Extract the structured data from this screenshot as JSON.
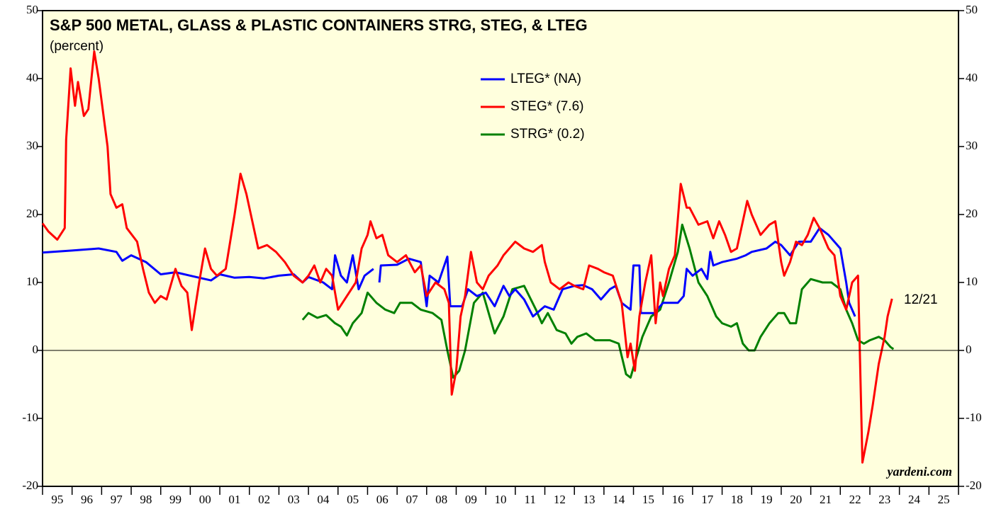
{
  "chart_data": {
    "type": "line",
    "title": "S&P 500 METAL, GLASS & PLASTIC CONTAINERS STRG, STEG, & LTEG",
    "subtitle": "(percent)",
    "annotation": "12/21",
    "source": "yardeni.com",
    "xlim": [
      1995,
      2026
    ],
    "xticks": [
      1995,
      1996,
      1997,
      1998,
      1999,
      2000,
      2001,
      2002,
      2003,
      2004,
      2005,
      2006,
      2007,
      2008,
      2009,
      2010,
      2011,
      2012,
      2013,
      2014,
      2015,
      2016,
      2017,
      2018,
      2019,
      2020,
      2021,
      2022,
      2023,
      2024,
      2025,
      2026
    ],
    "xlabels": [
      {
        "value": 1995.5,
        "label": "95"
      },
      {
        "value": 1996.5,
        "label": "96"
      },
      {
        "value": 1997.5,
        "label": "97"
      },
      {
        "value": 1998.5,
        "label": "98"
      },
      {
        "value": 1999.5,
        "label": "99"
      },
      {
        "value": 2000.5,
        "label": "00"
      },
      {
        "value": 2001.5,
        "label": "01"
      },
      {
        "value": 2002.5,
        "label": "02"
      },
      {
        "value": 2003.5,
        "label": "03"
      },
      {
        "value": 2004.5,
        "label": "04"
      },
      {
        "value": 2005.5,
        "label": "05"
      },
      {
        "value": 2006.5,
        "label": "06"
      },
      {
        "value": 2007.5,
        "label": "07"
      },
      {
        "value": 2008.5,
        "label": "08"
      },
      {
        "value": 2009.5,
        "label": "09"
      },
      {
        "value": 2010.5,
        "label": "10"
      },
      {
        "value": 2011.5,
        "label": "11"
      },
      {
        "value": 2012.5,
        "label": "12"
      },
      {
        "value": 2013.5,
        "label": "13"
      },
      {
        "value": 2014.5,
        "label": "14"
      },
      {
        "value": 2015.5,
        "label": "15"
      },
      {
        "value": 2016.5,
        "label": "16"
      },
      {
        "value": 2017.5,
        "label": "17"
      },
      {
        "value": 2018.5,
        "label": "18"
      },
      {
        "value": 2019.5,
        "label": "19"
      },
      {
        "value": 2020.5,
        "label": "20"
      },
      {
        "value": 2021.5,
        "label": "21"
      },
      {
        "value": 2022.5,
        "label": "22"
      },
      {
        "value": 2023.5,
        "label": "23"
      },
      {
        "value": 2024.5,
        "label": "24"
      },
      {
        "value": 2025.5,
        "label": "25"
      }
    ],
    "ylim": [
      -20,
      50
    ],
    "yticks": [
      -20,
      -10,
      0,
      10,
      20,
      30,
      40,
      50
    ],
    "zero_line": true,
    "background": "#ffffdd",
    "series": [
      {
        "name": "LTEG* (NA)",
        "color": "#0000ff",
        "x": [
          1995.0,
          1996.0,
          1996.9,
          1997.5,
          1997.7,
          1998.0,
          1998.5,
          1999.0,
          1999.5,
          2000.0,
          2000.7,
          2001.0,
          2001.5,
          2002.0,
          2002.5,
          2003.0,
          2003.5,
          2003.8,
          2004.0,
          2004.5,
          2004.8,
          2004.9,
          2005.1,
          2005.3,
          2005.5,
          2005.7,
          2005.9,
          2006.2,
          2006.3,
          2006.4,
          2006.45,
          2007.0,
          2007.4,
          2007.8,
          2008.0,
          2008.1,
          2008.4,
          2008.7,
          2008.8,
          2009.2,
          2009.4,
          2009.7,
          2010.0,
          2010.3,
          2010.6,
          2010.8,
          2011.0,
          2011.3,
          2011.6,
          2012.0,
          2012.3,
          2012.6,
          2013.0,
          2013.3,
          2013.6,
          2013.9,
          2014.2,
          2014.4,
          2014.6,
          2014.9,
          2015.0,
          2015.2,
          2015.25,
          2015.7,
          2016.0,
          2016.5,
          2016.7,
          2016.8,
          2017.0,
          2017.3,
          2017.5,
          2017.6,
          2017.7,
          2018.0,
          2018.5,
          2018.8,
          2019.0,
          2019.5,
          2019.8,
          2020.0,
          2020.3,
          2020.6,
          2021.0,
          2021.3,
          2021.6,
          2022.0,
          2022.2,
          2022.3,
          2022.5
        ],
        "values": [
          14.4,
          14.7,
          15,
          14.5,
          13.2,
          14,
          13,
          11.2,
          11.5,
          11,
          10.3,
          11.2,
          10.7,
          10.8,
          10.6,
          11,
          11.2,
          10,
          10.8,
          10,
          9,
          14,
          11,
          10,
          14,
          9,
          11,
          12,
          null,
          10,
          12.5,
          12.6,
          13.5,
          13,
          6.5,
          11,
          10,
          13.8,
          6.5,
          6.5,
          9,
          8,
          8.5,
          6.5,
          9.5,
          8,
          9,
          7.5,
          5,
          6.5,
          6,
          9,
          9.5,
          9.6,
          9,
          7.5,
          9,
          9.5,
          7,
          6,
          12.5,
          12.5,
          5.5,
          5.5,
          7,
          7,
          8,
          12,
          11,
          12,
          10.5,
          14.5,
          12.5,
          13,
          13.5,
          14,
          14.5,
          15,
          16,
          15.5,
          14,
          16,
          16,
          18,
          17,
          15,
          10,
          7,
          5
        ]
      },
      {
        "name": "STEG* (7.6)",
        "color": "#ff0000",
        "x": [
          1995.0,
          1995.2,
          1995.5,
          1995.75,
          1995.8,
          1995.95,
          1996.1,
          1996.2,
          1996.4,
          1996.55,
          1996.75,
          1996.9,
          1997.2,
          1997.3,
          1997.5,
          1997.7,
          1997.85,
          1998.2,
          1998.4,
          1998.6,
          1998.8,
          1999.0,
          1999.2,
          1999.5,
          1999.7,
          1999.9,
          2000.05,
          2000.3,
          2000.5,
          2000.7,
          2000.9,
          2001.2,
          2001.5,
          2001.7,
          2001.9,
          2002.1,
          2002.3,
          2002.6,
          2002.9,
          2003.2,
          2003.5,
          2003.8,
          2004.0,
          2004.2,
          2004.4,
          2004.6,
          2004.8,
          2005.0,
          2005.3,
          2005.6,
          2005.8,
          2006.0,
          2006.1,
          2006.3,
          2006.5,
          2006.7,
          2007.0,
          2007.3,
          2007.6,
          2007.8,
          2008.0,
          2008.3,
          2008.6,
          2008.75,
          2008.85,
          2009.0,
          2009.15,
          2009.3,
          2009.5,
          2009.7,
          2009.9,
          2010.1,
          2010.4,
          2010.6,
          2010.8,
          2011.0,
          2011.3,
          2011.6,
          2011.9,
          2012.0,
          2012.2,
          2012.5,
          2012.8,
          2013.0,
          2013.3,
          2013.5,
          2013.8,
          2014.0,
          2014.3,
          2014.6,
          2014.8,
          2014.9,
          2015.05,
          2015.2,
          2015.4,
          2015.6,
          2015.75,
          2015.9,
          2016.0,
          2016.2,
          2016.4,
          2016.6,
          2016.8,
          2016.9,
          2017.2,
          2017.5,
          2017.7,
          2017.9,
          2018.1,
          2018.3,
          2018.5,
          2018.7,
          2018.85,
          2019.0,
          2019.3,
          2019.6,
          2019.8,
          2020.0,
          2020.1,
          2020.3,
          2020.5,
          2020.7,
          2020.9,
          2021.1,
          2021.3,
          2021.6,
          2021.8,
          2022.0,
          2022.2,
          2022.4,
          2022.6,
          2022.75,
          2022.95,
          2023.1,
          2023.3,
          2023.5,
          2023.6,
          2023.75
        ],
        "values": [
          18.7,
          17.5,
          16.3,
          18,
          31,
          41.5,
          36,
          39.5,
          34.5,
          35.5,
          44,
          40,
          30,
          23,
          21,
          21.5,
          18,
          16,
          12,
          8.5,
          7,
          8,
          7.5,
          12,
          9.5,
          8.5,
          3,
          10,
          15,
          12,
          11,
          12,
          20,
          26,
          23,
          19,
          15,
          15.5,
          14.5,
          13,
          11,
          10,
          11,
          12.5,
          10,
          12,
          11,
          6,
          8,
          10,
          15,
          17,
          19,
          16.5,
          17,
          14,
          13,
          14,
          11.5,
          12.5,
          8,
          10,
          9,
          7,
          -6.5,
          -3,
          5,
          8,
          14.5,
          10,
          9,
          11,
          12.5,
          14,
          15,
          16,
          15,
          14.5,
          15.5,
          13,
          10,
          9,
          10,
          9.5,
          9,
          12.5,
          12,
          11.5,
          11,
          7,
          -1,
          1,
          -3,
          5,
          10,
          14,
          4,
          10,
          8,
          12,
          14,
          24.5,
          21,
          21,
          18.5,
          19,
          16.5,
          19,
          17,
          14.5,
          15,
          19,
          22,
          20,
          17,
          18.5,
          19,
          13,
          11,
          13,
          16,
          15.5,
          17,
          19.5,
          18,
          15,
          14,
          8,
          6,
          10,
          11,
          -16.5,
          -12,
          -8,
          -2,
          2,
          5,
          7.6
        ]
      },
      {
        "name": "STRG* (0.2)",
        "color": "#008000",
        "x": [
          2003.8,
          2004.0,
          2004.3,
          2004.6,
          2004.9,
          2005.1,
          2005.3,
          2005.5,
          2005.8,
          2006.0,
          2006.3,
          2006.6,
          2006.9,
          2007.1,
          2007.5,
          2007.8,
          2008.2,
          2008.5,
          2008.7,
          2008.9,
          2009.1,
          2009.3,
          2009.6,
          2009.9,
          2010.1,
          2010.3,
          2010.6,
          2010.9,
          2011.3,
          2011.7,
          2011.9,
          2012.1,
          2012.4,
          2012.7,
          2012.9,
          2013.1,
          2013.4,
          2013.7,
          2014.2,
          2014.5,
          2014.75,
          2014.9,
          2015.1,
          2015.3,
          2015.6,
          2015.9,
          2016.2,
          2016.5,
          2016.65,
          2016.9,
          2017.2,
          2017.5,
          2017.8,
          2018.0,
          2018.3,
          2018.5,
          2018.7,
          2018.9,
          2019.1,
          2019.3,
          2019.6,
          2019.9,
          2020.1,
          2020.3,
          2020.5,
          2020.7,
          2021.0,
          2021.4,
          2021.7,
          2022.0,
          2022.2,
          2022.4,
          2022.6,
          2022.8,
          2023.0,
          2023.3,
          2023.5,
          2023.7,
          2023.8
        ],
        "values": [
          4.5,
          5.5,
          4.8,
          5.2,
          4,
          3.5,
          2.2,
          4,
          5.5,
          8.5,
          7,
          6,
          5.5,
          7,
          7,
          6,
          5.5,
          4.5,
          0,
          -4,
          -3,
          0,
          7,
          8.5,
          5.5,
          2.5,
          5,
          9,
          9.5,
          6,
          4,
          5.5,
          3,
          2.5,
          1,
          2,
          2.5,
          1.5,
          1.5,
          1,
          -3.5,
          -4,
          -1,
          2,
          5,
          6,
          10,
          14.5,
          18.5,
          15,
          10,
          8,
          5,
          4,
          3.5,
          4,
          1,
          0,
          0,
          2,
          4,
          5.5,
          5.5,
          4,
          4,
          9,
          10.5,
          10,
          10,
          9,
          6,
          4,
          1.5,
          1,
          1.5,
          2,
          1.5,
          0.5,
          0.2
        ]
      }
    ]
  }
}
